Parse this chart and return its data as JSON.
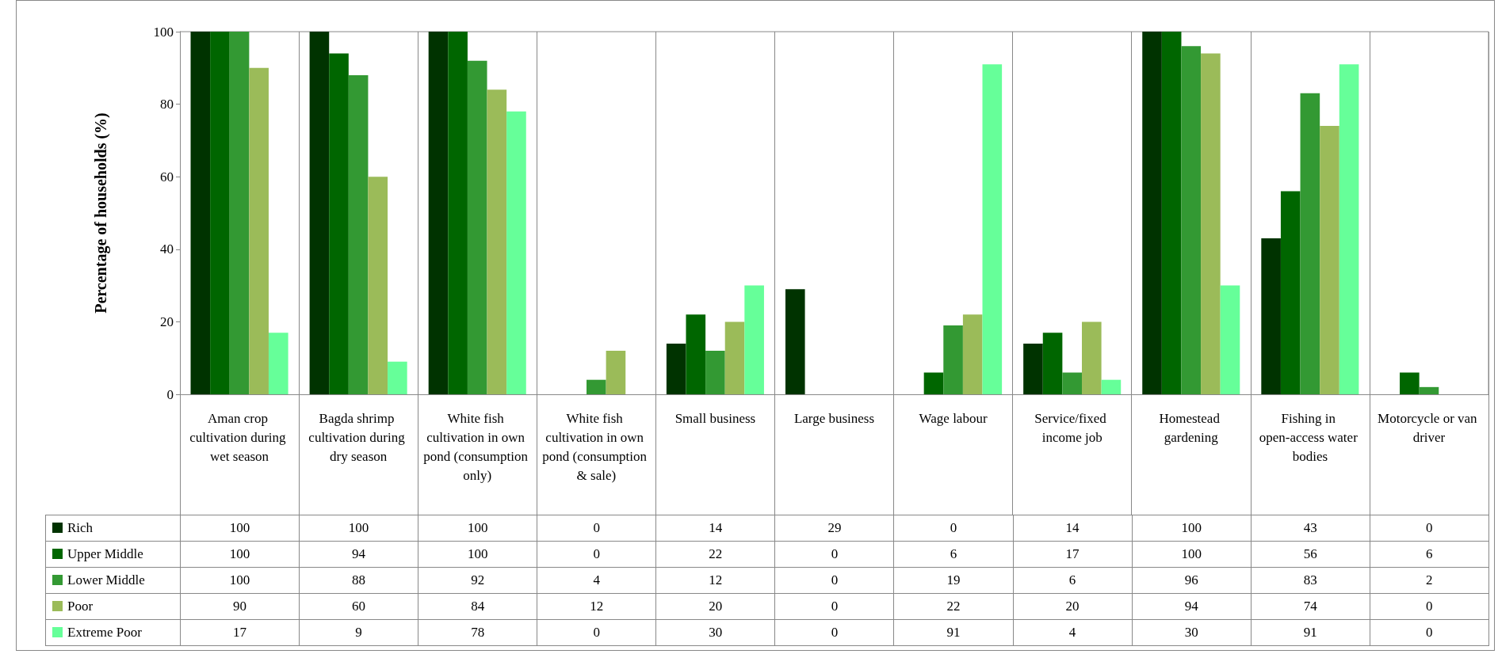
{
  "chart_data": {
    "type": "bar",
    "ylabel": "Percentage of households (%)",
    "categories": [
      "Aman crop cultivation during wet season",
      "Bagda shrimp cultivation during dry season",
      "White fish cultivation in own pond (consumption only)",
      "White fish cultivation in own pond (consumption & sale)",
      "Small business",
      "Large business",
      "Wage labour",
      "Service/fixed income job",
      "Homestead gardening",
      "Fishing in open-access water bodies",
      "Motorcycle or van driver"
    ],
    "series": [
      {
        "name": "Rich",
        "color": "#003300",
        "values": [
          100,
          100,
          100,
          0,
          14,
          29,
          0,
          14,
          100,
          43,
          0
        ]
      },
      {
        "name": "Upper Middle",
        "color": "#006600",
        "values": [
          100,
          94,
          100,
          0,
          22,
          0,
          6,
          17,
          100,
          56,
          6
        ]
      },
      {
        "name": "Lower Middle",
        "color": "#339933",
        "values": [
          100,
          88,
          92,
          4,
          12,
          0,
          19,
          6,
          96,
          83,
          2
        ]
      },
      {
        "name": "Poor",
        "color": "#9bbb59",
        "values": [
          90,
          60,
          84,
          12,
          20,
          0,
          22,
          20,
          94,
          74,
          0
        ]
      },
      {
        "name": "Extreme Poor",
        "color": "#66ff99",
        "values": [
          17,
          9,
          78,
          0,
          30,
          0,
          91,
          4,
          30,
          91,
          0
        ]
      }
    ],
    "ylim": [
      0,
      100
    ],
    "yticks": [
      0,
      20,
      40,
      60,
      80,
      100
    ],
    "grid": "x",
    "legend": "bottom left",
    "data_labels": true
  }
}
